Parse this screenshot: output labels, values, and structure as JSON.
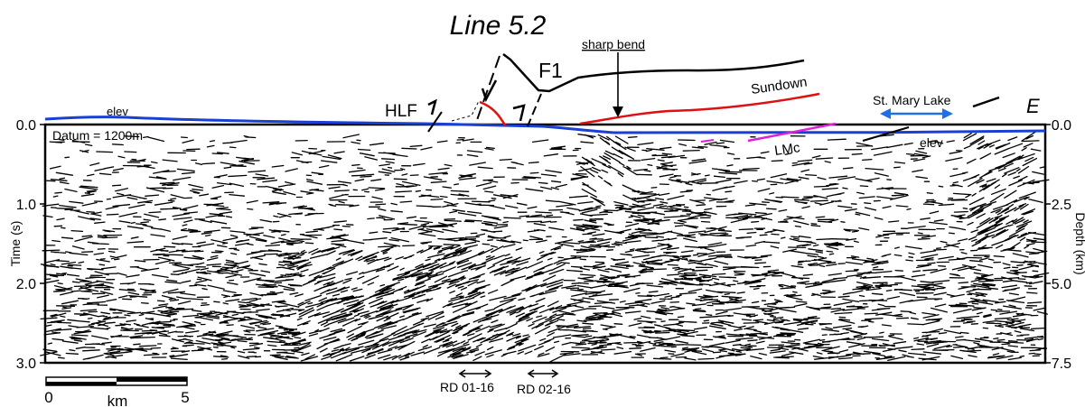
{
  "title": "Line 5.2",
  "labels": {
    "direction": "E",
    "fault_hlf": "HLF",
    "fault_f1": "F1",
    "sharp_bend": "sharp bend",
    "sundown": "Sundown",
    "lake": "St. Mary Lake",
    "lmc": "LMc",
    "elev_left": "elev",
    "elev_right": "elev",
    "datum": "Datum = 1200m"
  },
  "left_axis": {
    "label": "Time (s)",
    "ticks": [
      "0.0",
      "1.0",
      "2.0",
      "3.0"
    ]
  },
  "right_axis": {
    "label": "Depth (km)",
    "ticks": [
      "0.0",
      "2.5",
      "5.0",
      "7.5"
    ]
  },
  "scale_bar": {
    "start": "0",
    "end": "5",
    "unit": "km"
  },
  "markers": [
    {
      "label": "RD 01-16"
    },
    {
      "label": "RD 02-16"
    }
  ],
  "colors": {
    "elevation": "#1a3fd6",
    "sundown": "#e01010",
    "lmc": "#e020d8",
    "lake_arrow": "#1f6fe6",
    "reflectors": "#000000"
  }
}
